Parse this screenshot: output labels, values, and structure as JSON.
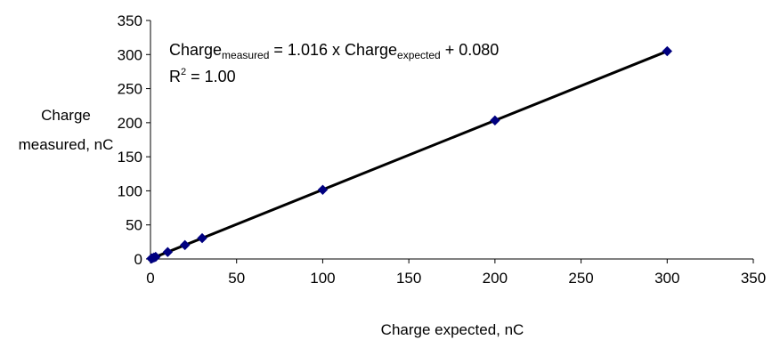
{
  "chart_data": {
    "type": "scatter",
    "title": "",
    "xlabel": "Charge expected, nC",
    "ylabel": "Charge measured, nC",
    "xlim": [
      0,
      350
    ],
    "ylim": [
      0,
      350
    ],
    "xticks": [
      0,
      50,
      100,
      150,
      200,
      250,
      300,
      350
    ],
    "yticks": [
      0,
      50,
      100,
      150,
      200,
      250,
      300,
      350
    ],
    "grid": false,
    "legend": "none",
    "colors": {
      "marker": "#000080",
      "trendline": "#000000",
      "axis": "#000000"
    },
    "series": [
      {
        "points": [
          {
            "x": 0.5,
            "y": 0.6
          },
          {
            "x": 1,
            "y": 1.1
          },
          {
            "x": 2,
            "y": 2.1
          },
          {
            "x": 3,
            "y": 3.1
          },
          {
            "x": 10,
            "y": 10.2
          },
          {
            "x": 20,
            "y": 20.4
          },
          {
            "x": 30,
            "y": 30.6
          },
          {
            "x": 100,
            "y": 101.5
          },
          {
            "x": 200,
            "y": 203.3
          },
          {
            "x": 300,
            "y": 304.9
          }
        ]
      }
    ],
    "trendline": {
      "slope": 1.016,
      "intercept": 0.08,
      "x_range": [
        0,
        300
      ]
    },
    "annotation": {
      "equation": {
        "lhs_base": "Charge",
        "lhs_sub": "measured",
        "middle": " = 1.016 x Charge",
        "rhs_sub": "expected",
        "tail": " + 0.080"
      },
      "r2": {
        "base": "R",
        "sup": "2",
        "rest": " = 1.00"
      }
    }
  }
}
